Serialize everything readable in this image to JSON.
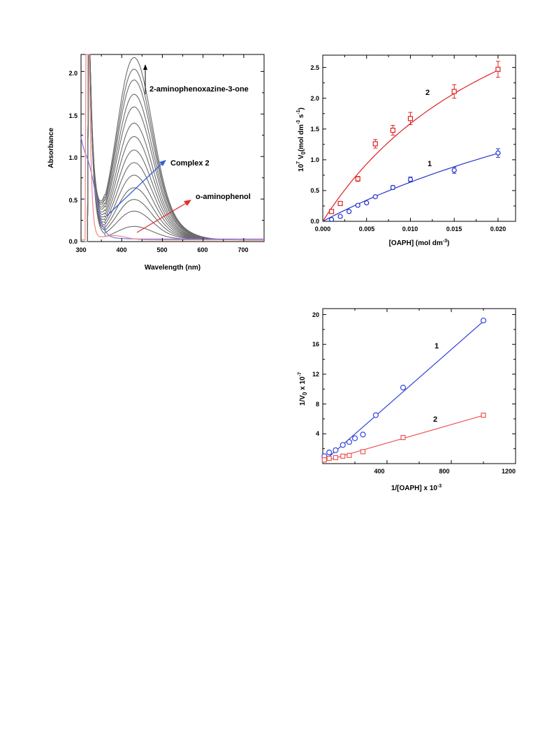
{
  "chart_data": [
    {
      "type": "line",
      "xlabel": "Wavelength (nm)",
      "ylabel": "Absorbance",
      "xlim": [
        300,
        750
      ],
      "ylim": [
        0,
        2.2
      ],
      "xticks": [
        "300",
        "400",
        "500",
        "600",
        "700"
      ],
      "yticks": [
        "0.0",
        "0.5",
        "1.0",
        "1.5",
        "2.0"
      ],
      "grid": false,
      "annotations": {
        "product": "2-aminophenoxazine-3-one",
        "complex": "Complex 2",
        "substrate": "o-aminophenol"
      },
      "colors": {
        "spectra": "#6b6b6b",
        "complex": "#7777ee",
        "substrate": "#ee8888",
        "arrow_complex": "#3a5fd6",
        "arrow_substrate": "#e03030"
      },
      "spectra_peak_absorbance_at_430nm": [
        0.15,
        0.32,
        0.45,
        0.58,
        0.72,
        0.86,
        1.0,
        1.15,
        1.3,
        1.48,
        1.62,
        1.78,
        1.9,
        2.03
      ]
    },
    {
      "type": "scatter",
      "xlabel": "[OAPH] (mol dm",
      "xlabel_sup": "-3",
      "xlabel_end": ")",
      "ylabel_parts": [
        "10",
        "7",
        " V",
        "0",
        "(mol dm",
        "-3",
        " s",
        "-1",
        ")"
      ],
      "xlim": [
        0,
        0.022
      ],
      "ylim": [
        0,
        2.7
      ],
      "xticks": [
        "0.000",
        "0.005",
        "0.010",
        "0.015",
        "0.020"
      ],
      "yticks": [
        "0.0",
        "0.5",
        "1.0",
        "1.5",
        "2.0",
        "2.5"
      ],
      "grid": false,
      "series": [
        {
          "name": "1",
          "color": "#2233cc",
          "marker": "circle",
          "x": [
            0.001,
            0.002,
            0.003,
            0.004,
            0.005,
            0.006,
            0.008,
            0.01,
            0.015,
            0.02
          ],
          "y": [
            0.03,
            0.08,
            0.16,
            0.26,
            0.3,
            0.4,
            0.55,
            0.68,
            0.83,
            1.11
          ],
          "err": [
            0.02,
            0.02,
            0.02,
            0.02,
            0.02,
            0.02,
            0.03,
            0.04,
            0.05,
            0.07
          ]
        },
        {
          "name": "2",
          "color": "#dd2222",
          "marker": "square",
          "x": [
            0.001,
            0.002,
            0.004,
            0.006,
            0.008,
            0.01,
            0.015,
            0.02
          ],
          "y": [
            0.16,
            0.29,
            0.69,
            1.26,
            1.48,
            1.67,
            2.11,
            2.47
          ],
          "err": [
            0.02,
            0.03,
            0.04,
            0.07,
            0.08,
            0.1,
            0.11,
            0.13
          ]
        }
      ]
    },
    {
      "type": "scatter",
      "xlabel": "1/[OAPH] x 10",
      "xlabel_sup": "-3",
      "ylabel_parts": [
        "1/V",
        "0",
        " x 10",
        "-7"
      ],
      "xlim": [
        0,
        1200
      ],
      "ylim": [
        0,
        20.8
      ],
      "xticks": [
        "400",
        "800",
        "1200"
      ],
      "yticks": [
        "4",
        "8",
        "12",
        "16",
        "20"
      ],
      "grid": false,
      "series": [
        {
          "name": "1",
          "color": "#3344dd",
          "marker": "circle",
          "x": [
            10,
            40,
            80,
            125,
            165,
            200,
            250,
            330,
            500,
            1000
          ],
          "y": [
            1.0,
            1.5,
            1.8,
            2.5,
            2.9,
            3.4,
            3.9,
            6.5,
            10.2,
            19.2
          ]
        },
        {
          "name": "2",
          "color": "#ee5555",
          "marker": "square",
          "x": [
            10,
            40,
            80,
            125,
            165,
            250,
            500,
            1000
          ],
          "y": [
            0.5,
            0.7,
            0.8,
            1.0,
            1.1,
            1.6,
            3.5,
            6.5
          ]
        }
      ]
    }
  ]
}
